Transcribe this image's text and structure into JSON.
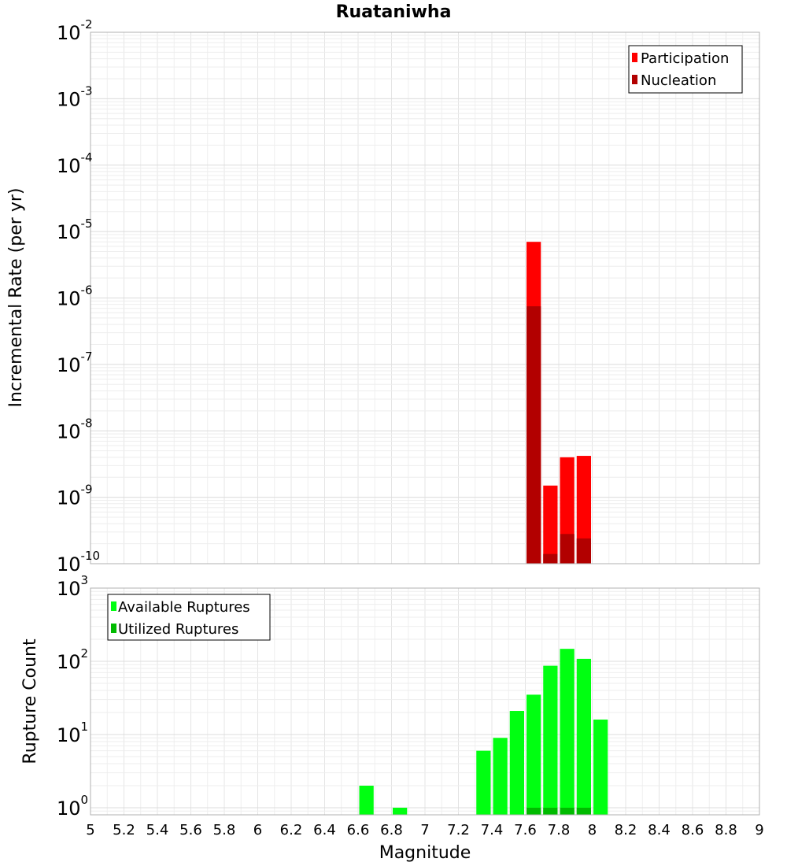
{
  "chart_data": {
    "title": "Ruataniwha",
    "xlabel": "Magnitude",
    "x_ticks": [
      "5",
      "5.2",
      "5.4",
      "5.6",
      "5.8",
      "6",
      "6.2",
      "6.4",
      "6.6",
      "6.8",
      "7",
      "7.2",
      "7.4",
      "7.6",
      "7.8",
      "8",
      "8.2",
      "8.4",
      "8.6",
      "8.8",
      "9"
    ],
    "xlim": [
      5,
      9
    ],
    "bin_width": 0.1,
    "panels": [
      {
        "type": "bar",
        "ylabel": "Incremental Rate (per yr)",
        "yscale": "log",
        "ylim": [
          1e-10,
          0.01
        ],
        "y_tick_exponents": [
          "-10",
          "-9",
          "-8",
          "-7",
          "-6",
          "-5",
          "-4",
          "-3",
          "-2"
        ],
        "legend_position": "top-right",
        "colors": {
          "Participation": "#ff0000",
          "Nucleation": "#b20000"
        },
        "series": [
          {
            "name": "Participation",
            "x": [
              7.65,
              7.75,
              7.85,
              7.95
            ],
            "values": [
              7e-06,
              1.5e-09,
              4e-09,
              4.2e-09
            ]
          },
          {
            "name": "Nucleation",
            "x": [
              7.65,
              7.75,
              7.85,
              7.95
            ],
            "values": [
              7.5e-07,
              1.4e-10,
              2.8e-10,
              2.4e-10
            ]
          }
        ]
      },
      {
        "type": "bar",
        "ylabel": "Rupture Count",
        "yscale": "log",
        "ylim": [
          0.8,
          1000
        ],
        "y_tick_exponents": [
          "0",
          "1",
          "2",
          "3"
        ],
        "legend_position": "top-left",
        "colors": {
          "Available Ruptures": "#00ff11",
          "Utilized Ruptures": "#00bb00"
        },
        "series": [
          {
            "name": "Available Ruptures",
            "x": [
              6.65,
              6.85,
              7.35,
              7.45,
              7.55,
              7.65,
              7.75,
              7.85,
              7.95,
              8.05
            ],
            "values": [
              2,
              1,
              6,
              9,
              21,
              35,
              87,
              148,
              108,
              16
            ]
          },
          {
            "name": "Utilized Ruptures",
            "x": [
              7.65,
              7.75,
              7.85,
              7.95
            ],
            "values": [
              1,
              1,
              1,
              1
            ]
          }
        ]
      }
    ]
  }
}
